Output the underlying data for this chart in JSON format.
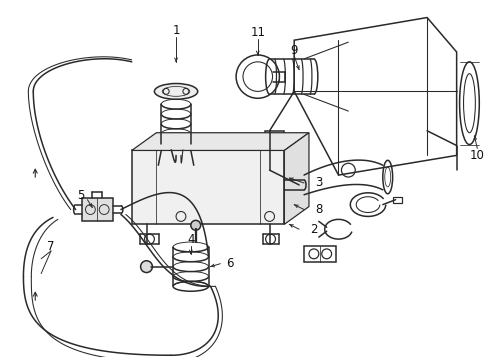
{
  "background_color": "#ffffff",
  "line_color": "#2a2a2a",
  "line_width": 1.1,
  "label_fontsize": 8.5,
  "label_color": "#111111",
  "figsize": [
    4.89,
    3.6
  ],
  "dpi": 100
}
